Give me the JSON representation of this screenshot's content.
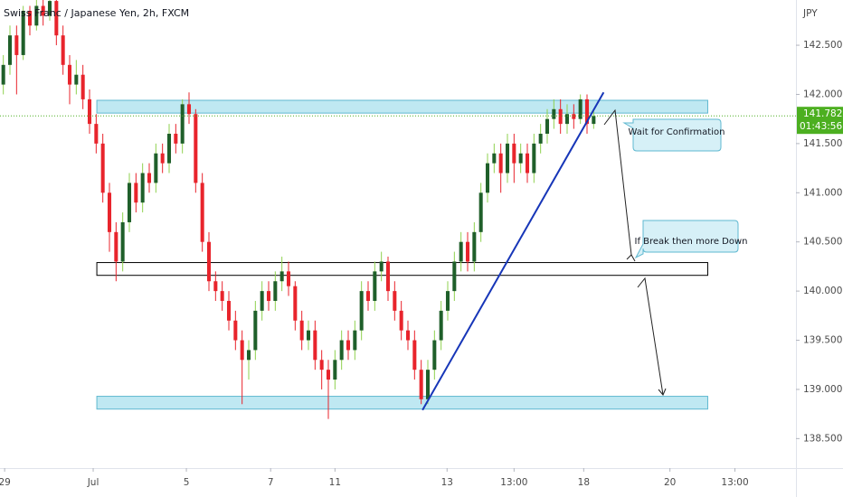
{
  "chart_data": {
    "type": "candlestick",
    "title": "Swiss Franc / Japanese Yen, 2h, FXCM",
    "unit": "JPY",
    "open": [
      142.1,
      142.3,
      142.6,
      142.4,
      142.85,
      142.7,
      142.9,
      142.8,
      142.95,
      142.6,
      142.3,
      142.1,
      142.2,
      141.95,
      141.7,
      141.5,
      141.0,
      140.6,
      140.3,
      140.7,
      141.1,
      140.9,
      141.2,
      141.1,
      141.4,
      141.3,
      141.6,
      141.5,
      141.9,
      141.8,
      141.1,
      140.5,
      140.1,
      140.0,
      139.9,
      139.7,
      139.5,
      139.3,
      139.4,
      139.8,
      140.0,
      139.9,
      140.1,
      140.2,
      140.05,
      139.7,
      139.5,
      139.6,
      139.3,
      139.2,
      139.1,
      139.3,
      139.5,
      139.4,
      139.6,
      140.0,
      139.9,
      140.2,
      140.3,
      140.0,
      139.8,
      139.6,
      139.5,
      139.2,
      138.9,
      139.2,
      139.5,
      139.8,
      140.0,
      140.3,
      140.5,
      140.3,
      140.6,
      141.0,
      141.3,
      141.4,
      141.2,
      141.5,
      141.3,
      141.4,
      141.2,
      141.5,
      141.6,
      141.75,
      141.85,
      141.7,
      141.8,
      141.75,
      141.95,
      141.7
    ],
    "high": [
      142.4,
      142.7,
      142.7,
      142.9,
      142.9,
      142.96,
      142.96,
      142.96,
      142.96,
      142.7,
      142.4,
      142.35,
      142.3,
      142.05,
      141.8,
      141.6,
      141.1,
      140.7,
      140.8,
      141.2,
      141.2,
      141.3,
      141.3,
      141.5,
      141.5,
      141.7,
      141.7,
      141.95,
      142.02,
      141.85,
      141.2,
      140.6,
      140.2,
      140.1,
      140.0,
      139.8,
      139.6,
      139.5,
      139.9,
      140.1,
      140.1,
      140.2,
      140.35,
      140.3,
      140.1,
      139.8,
      139.7,
      139.7,
      139.4,
      139.3,
      139.4,
      139.6,
      139.6,
      139.7,
      140.1,
      140.1,
      140.3,
      140.4,
      140.35,
      140.1,
      139.9,
      139.7,
      139.6,
      139.3,
      139.3,
      139.6,
      139.9,
      140.1,
      140.4,
      140.6,
      140.6,
      140.7,
      141.1,
      141.4,
      141.5,
      141.5,
      141.6,
      141.6,
      141.5,
      141.5,
      141.6,
      141.7,
      141.85,
      141.95,
      141.95,
      141.9,
      141.9,
      142.0,
      142.0,
      141.85
    ],
    "low": [
      142.0,
      142.2,
      142.0,
      142.35,
      142.6,
      142.65,
      142.7,
      142.75,
      142.5,
      142.2,
      141.9,
      142.0,
      141.85,
      141.6,
      141.4,
      140.9,
      140.4,
      140.1,
      140.2,
      140.6,
      140.8,
      140.8,
      141.0,
      141.0,
      141.2,
      141.2,
      141.4,
      141.4,
      141.7,
      141.0,
      140.4,
      140.0,
      139.9,
      139.8,
      139.6,
      139.4,
      138.85,
      139.1,
      139.3,
      139.7,
      139.8,
      139.8,
      140.0,
      139.95,
      139.6,
      139.4,
      139.4,
      139.2,
      139.0,
      138.7,
      139.0,
      139.2,
      139.3,
      139.3,
      139.5,
      139.8,
      139.8,
      140.1,
      139.9,
      139.7,
      139.5,
      139.4,
      139.1,
      138.85,
      138.85,
      139.1,
      139.4,
      139.7,
      139.9,
      140.2,
      140.2,
      140.2,
      140.5,
      140.9,
      141.2,
      141.0,
      141.1,
      141.1,
      141.2,
      141.1,
      141.1,
      141.4,
      141.5,
      141.65,
      141.6,
      141.6,
      141.65,
      141.7,
      141.6,
      141.65
    ],
    "close": [
      142.3,
      142.6,
      142.4,
      142.85,
      142.7,
      142.9,
      142.8,
      142.95,
      142.6,
      142.3,
      142.1,
      142.2,
      141.95,
      141.7,
      141.5,
      141.0,
      140.6,
      140.3,
      140.7,
      141.1,
      140.9,
      141.2,
      141.1,
      141.4,
      141.3,
      141.6,
      141.5,
      141.9,
      141.8,
      141.1,
      140.5,
      140.1,
      140.0,
      139.9,
      139.7,
      139.5,
      139.3,
      139.4,
      139.8,
      140.0,
      139.9,
      140.1,
      140.2,
      140.05,
      139.7,
      139.5,
      139.6,
      139.3,
      139.2,
      139.1,
      139.3,
      139.5,
      139.4,
      139.6,
      140.0,
      139.9,
      140.2,
      140.3,
      140.0,
      139.8,
      139.6,
      139.5,
      139.2,
      138.9,
      139.2,
      139.5,
      139.8,
      140.0,
      140.3,
      140.5,
      140.3,
      140.6,
      141.0,
      141.3,
      141.4,
      141.2,
      141.5,
      141.3,
      141.4,
      141.2,
      141.5,
      141.6,
      141.75,
      141.85,
      141.7,
      141.8,
      141.75,
      141.95,
      141.7,
      141.78
    ],
    "up_color": "#1f5f2a",
    "up_wick": "#8fd14f",
    "down_color": "#e8242c",
    "xlim": [
      -0.5,
      119.5
    ],
    "xticks": [
      {
        "value": 0.2,
        "label": "29"
      },
      {
        "value": 13.55,
        "label": "Jul"
      },
      {
        "value": 27.6,
        "label": "5"
      },
      {
        "value": 40.3,
        "label": "7"
      },
      {
        "value": 50,
        "label": "11"
      },
      {
        "value": 66.9,
        "label": "13"
      },
      {
        "value": 77,
        "label": "13:00"
      },
      {
        "value": 87.5,
        "label": "18"
      },
      {
        "value": 100.5,
        "label": "20"
      },
      {
        "value": 110.3,
        "label": "13:00"
      }
    ],
    "ylim": [
      138.2,
      142.96
    ],
    "yticks": [
      {
        "value": 142.5,
        "label": "142.500"
      },
      {
        "value": 142,
        "label": "142.000"
      },
      {
        "value": 141.5,
        "label": "141.500"
      },
      {
        "value": 141,
        "label": "141.000"
      },
      {
        "value": 140.5,
        "label": "140.500"
      },
      {
        "value": 140,
        "label": "140.000"
      },
      {
        "value": 139.5,
        "label": "139.500"
      },
      {
        "value": 139,
        "label": "139.000"
      },
      {
        "value": 138.5,
        "label": "138.500"
      }
    ],
    "last_price": 141.782,
    "countdown": "01:43:56",
    "last_color": "#4caf20",
    "zones": [
      {
        "x": [
          14.1,
          106.2
        ],
        "y": [
          141.81,
          141.94
        ],
        "fill": "#bfe8f2",
        "stroke": "#5fb8d0"
      },
      {
        "x": [
          14.1,
          106.2
        ],
        "y": [
          140.16,
          140.29
        ],
        "fill": "#ffffff",
        "stroke": "#000000"
      },
      {
        "x": [
          14.1,
          106.2
        ],
        "y": [
          138.8,
          138.93
        ],
        "fill": "#bfe8f2",
        "stroke": "#5fb8d0"
      }
    ],
    "trendline": {
      "x": [
        63.2,
        90.5
      ],
      "y": [
        138.79,
        142.02
      ],
      "color": "#1736b8"
    },
    "annotations": [
      "Wait for Confirmation",
      "If Break then more Down"
    ]
  }
}
